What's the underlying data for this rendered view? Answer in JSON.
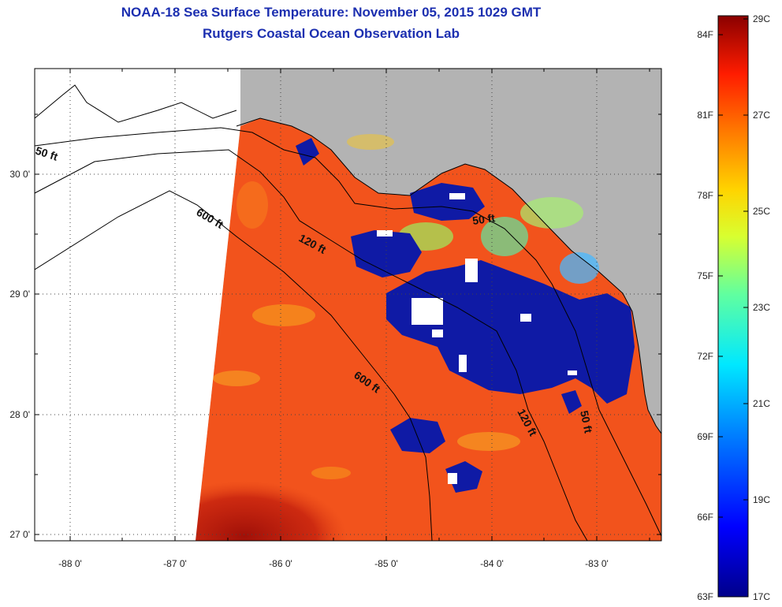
{
  "title": {
    "line1": "NOAA-18 Sea Surface Temperature:  November 05, 2015 1029 GMT",
    "line2": "Rutgers Coastal Ocean Observation Lab"
  },
  "map": {
    "lat_ticks": [
      "30 0'",
      "29 0'",
      "28 0'",
      "27 0'"
    ],
    "lon_ticks": [
      "-88 0'",
      "-87 0'",
      "-86 0'",
      "-85 0'",
      "-84 0'",
      "-83 0'"
    ],
    "contour_labels": [
      "50 ft",
      "600 ft",
      "120 ft",
      "50 ft",
      "600 ft",
      "120 ft",
      "50 ft"
    ],
    "colors": {
      "land": "#b3b3b3",
      "no_data": "#ffffff",
      "warm_water": "#f2531c",
      "cold_water": "#0f1aa5"
    }
  },
  "colorbar": {
    "fahrenheit_labels": [
      "84F",
      "81F",
      "78F",
      "75F",
      "72F",
      "69F",
      "66F",
      "63F"
    ],
    "celsius_labels": [
      "29C",
      "27C",
      "25C",
      "23C",
      "21C",
      "19C",
      "17C"
    ],
    "range_c": [
      17,
      29
    ],
    "range_f": [
      63,
      84
    ]
  }
}
